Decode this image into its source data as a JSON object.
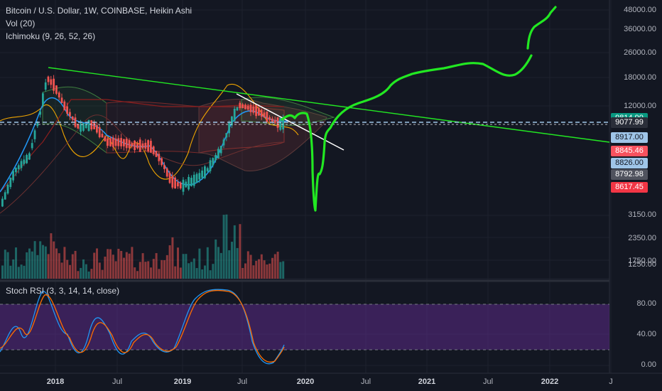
{
  "legend": {
    "main": "Bitcoin / U.S. Dollar, 1W, COINBASE, Heikin Ashi",
    "vol": "Vol (20)",
    "ichimoku": "Ichimoku (9, 26, 52, 26)",
    "stoch": "Stoch RSI (3, 3, 14, 14, close)"
  },
  "price_axis": [
    "48000.00",
    "36000.00",
    "26000.00",
    "18000.00",
    "12000.00",
    "3150.00",
    "2350.00",
    "1750.00",
    "1250.00"
  ],
  "price_tags": [
    {
      "label": "9814.90",
      "bg": "#089981",
      "fg": "#ffffff"
    },
    {
      "label": "9077.99",
      "bg": "#2a2e39",
      "fg": "#ffffff"
    },
    {
      "label": "8917.00",
      "bg": "#9fc5e8",
      "fg": "#131722"
    },
    {
      "label": "8845.46",
      "bg": "#f7525f",
      "fg": "#ffffff"
    },
    {
      "label": "8826.00",
      "bg": "#9fc5e8",
      "fg": "#131722"
    },
    {
      "label": "8792.98",
      "bg": "#50535e",
      "fg": "#ffffff"
    },
    {
      "label": "8617.45",
      "bg": "#f23645",
      "fg": "#ffffff"
    }
  ],
  "rsi_axis": [
    "80.00",
    "40.00",
    "0.00"
  ],
  "time_axis": [
    {
      "label": "2018",
      "bold": true
    },
    {
      "label": "Jul",
      "bold": false
    },
    {
      "label": "2019",
      "bold": true
    },
    {
      "label": "Jul",
      "bold": false
    },
    {
      "label": "2020",
      "bold": true
    },
    {
      "label": "Jul",
      "bold": false
    },
    {
      "label": "2021",
      "bold": true
    },
    {
      "label": "Jul",
      "bold": false
    },
    {
      "label": "2022",
      "bold": true
    },
    {
      "label": "J",
      "bold": false
    }
  ],
  "colors": {
    "background": "#131722",
    "up": "#26a69a",
    "down": "#ef5350",
    "drawing": "#22e822",
    "rsi_band": "#5b2a86"
  }
}
